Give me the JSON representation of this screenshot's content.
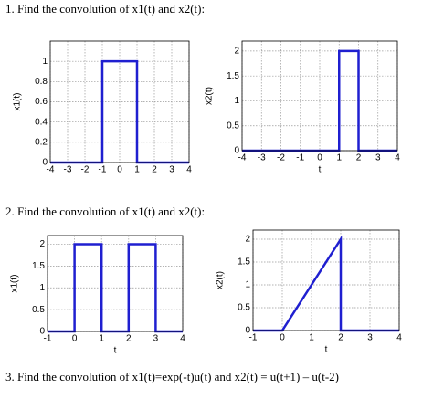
{
  "problems": [
    "1.  Find the convolution of x1(t) and x2(t):",
    "2. Find the convolution of x1(t) and x2(t):",
    "3.  Find the convolution of x1(t)=exp(-t)u(t)  and   x2(t) = u(t+1) – u(t-2)"
  ],
  "chart_data": [
    {
      "type": "line",
      "ylabel": "x1(t)",
      "x": [
        -4,
        -1,
        -1,
        1,
        1,
        4
      ],
      "values": [
        0,
        0,
        1,
        1,
        0,
        0
      ],
      "color": "#1f1fd0",
      "xlim": [
        -4,
        4
      ],
      "ylim": [
        0,
        1.2
      ],
      "xticks": [
        -4,
        -3,
        -2,
        -1,
        0,
        1,
        2,
        3,
        4
      ],
      "yticks": [
        0,
        0.2,
        0.4,
        0.6,
        0.8,
        1
      ],
      "grid": true
    },
    {
      "type": "line",
      "ylabel": "x2(t)",
      "xlabel": "t",
      "x": [
        -4,
        1,
        1,
        2,
        2,
        4
      ],
      "values": [
        0,
        0,
        2,
        2,
        0,
        0
      ],
      "color": "#1f1fd0",
      "xlim": [
        -4,
        4
      ],
      "ylim": [
        0,
        2.2
      ],
      "xticks": [
        -4,
        -3,
        -2,
        -1,
        0,
        1,
        2,
        3,
        4
      ],
      "yticks": [
        0,
        0.5,
        1,
        1.5,
        2
      ],
      "grid": true
    },
    {
      "type": "line",
      "ylabel": "x1(t)",
      "xlabel": "t",
      "x": [
        -1,
        0,
        0,
        1,
        1,
        2,
        2,
        3,
        3,
        4
      ],
      "values": [
        0,
        0,
        2,
        2,
        0,
        0,
        2,
        2,
        0,
        0
      ],
      "color": "#1f1fd0",
      "xlim": [
        -1,
        4
      ],
      "ylim": [
        0,
        2.2
      ],
      "xticks": [
        -1,
        0,
        1,
        2,
        3,
        4
      ],
      "yticks": [
        0,
        0.5,
        1,
        1.5,
        2
      ],
      "grid": true
    },
    {
      "type": "line",
      "ylabel": "x2(t)",
      "xlabel": "t",
      "x": [
        -1,
        0,
        2,
        2,
        4
      ],
      "values": [
        0,
        0,
        2,
        0,
        0
      ],
      "color": "#1f1fd0",
      "xlim": [
        -1,
        4
      ],
      "ylim": [
        0,
        2.2
      ],
      "xticks": [
        -1,
        0,
        1,
        2,
        3,
        4
      ],
      "yticks": [
        0,
        0.5,
        1,
        1.5,
        2
      ],
      "grid": true
    }
  ]
}
